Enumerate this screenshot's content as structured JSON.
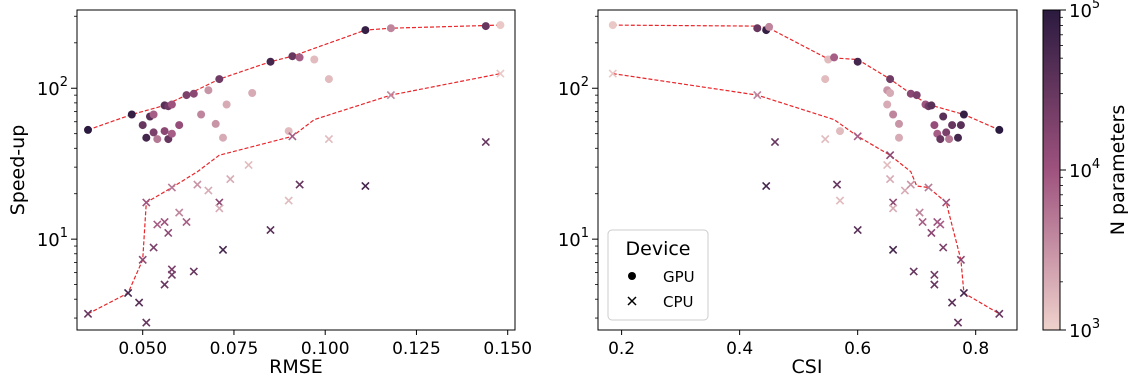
{
  "chart_data": [
    {
      "type": "scatter",
      "xlabel": "RMSE",
      "ylabel": "Speed-up",
      "xlim": [
        0.032,
        0.152
      ],
      "ylim": [
        2.5,
        330
      ],
      "yscale": "log",
      "xticks": [
        "0.050",
        "0.075",
        "0.100",
        "0.125",
        "0.150"
      ],
      "xtick_values": [
        0.05,
        0.075,
        0.1,
        0.125,
        0.15
      ],
      "yticks": [
        {
          "base": "10",
          "exp": "1",
          "value": 10
        },
        {
          "base": "10",
          "exp": "2",
          "value": 100
        }
      ],
      "gpu_points": [
        {
          "x": 0.035,
          "y": 53,
          "n": 100000
        },
        {
          "x": 0.047,
          "y": 67,
          "n": 80000
        },
        {
          "x": 0.05,
          "y": 57,
          "n": 30000
        },
        {
          "x": 0.051,
          "y": 47,
          "n": 60000
        },
        {
          "x": 0.052,
          "y": 65,
          "n": 40000
        },
        {
          "x": 0.053,
          "y": 67,
          "n": 8000
        },
        {
          "x": 0.053,
          "y": 51,
          "n": 20000
        },
        {
          "x": 0.054,
          "y": 46,
          "n": 5000
        },
        {
          "x": 0.056,
          "y": 77,
          "n": 40000
        },
        {
          "x": 0.056,
          "y": 52,
          "n": 15000
        },
        {
          "x": 0.057,
          "y": 76,
          "n": 25000
        },
        {
          "x": 0.057,
          "y": 46,
          "n": 30000
        },
        {
          "x": 0.058,
          "y": 78,
          "n": 10000
        },
        {
          "x": 0.058,
          "y": 50,
          "n": 8000
        },
        {
          "x": 0.06,
          "y": 57,
          "n": 12000
        },
        {
          "x": 0.062,
          "y": 90,
          "n": 20000
        },
        {
          "x": 0.064,
          "y": 92,
          "n": 15000
        },
        {
          "x": 0.066,
          "y": 67,
          "n": 4000
        },
        {
          "x": 0.068,
          "y": 97,
          "n": 3000
        },
        {
          "x": 0.07,
          "y": 58,
          "n": 3000
        },
        {
          "x": 0.071,
          "y": 115,
          "n": 25000
        },
        {
          "x": 0.072,
          "y": 47,
          "n": 2000
        },
        {
          "x": 0.073,
          "y": 78,
          "n": 2000
        },
        {
          "x": 0.08,
          "y": 93,
          "n": 2000
        },
        {
          "x": 0.085,
          "y": 150,
          "n": 60000
        },
        {
          "x": 0.09,
          "y": 52,
          "n": 1500
        },
        {
          "x": 0.091,
          "y": 163,
          "n": 30000
        },
        {
          "x": 0.093,
          "y": 160,
          "n": 8000
        },
        {
          "x": 0.097,
          "y": 155,
          "n": 1500
        },
        {
          "x": 0.101,
          "y": 115,
          "n": 1500
        },
        {
          "x": 0.111,
          "y": 243,
          "n": 80000
        },
        {
          "x": 0.118,
          "y": 250,
          "n": 4000
        },
        {
          "x": 0.144,
          "y": 258,
          "n": 30000
        },
        {
          "x": 0.148,
          "y": 262,
          "n": 1200
        }
      ],
      "cpu_points": [
        {
          "x": 0.035,
          "y": 3.2,
          "n": 30000
        },
        {
          "x": 0.046,
          "y": 4.4,
          "n": 60000
        },
        {
          "x": 0.049,
          "y": 3.8,
          "n": 40000
        },
        {
          "x": 0.05,
          "y": 7.3,
          "n": 15000
        },
        {
          "x": 0.051,
          "y": 2.8,
          "n": 30000
        },
        {
          "x": 0.051,
          "y": 17.5,
          "n": 10000
        },
        {
          "x": 0.053,
          "y": 8.8,
          "n": 20000
        },
        {
          "x": 0.054,
          "y": 12.5,
          "n": 8000
        },
        {
          "x": 0.056,
          "y": 5.0,
          "n": 30000
        },
        {
          "x": 0.056,
          "y": 13.0,
          "n": 10000
        },
        {
          "x": 0.057,
          "y": 11.0,
          "n": 15000
        },
        {
          "x": 0.058,
          "y": 5.8,
          "n": 25000
        },
        {
          "x": 0.058,
          "y": 6.3,
          "n": 20000
        },
        {
          "x": 0.058,
          "y": 22.0,
          "n": 5000
        },
        {
          "x": 0.06,
          "y": 15.0,
          "n": 4000
        },
        {
          "x": 0.062,
          "y": 13.0,
          "n": 8000
        },
        {
          "x": 0.064,
          "y": 6.1,
          "n": 30000
        },
        {
          "x": 0.065,
          "y": 23.0,
          "n": 3000
        },
        {
          "x": 0.068,
          "y": 21.0,
          "n": 2000
        },
        {
          "x": 0.071,
          "y": 17.5,
          "n": 15000
        },
        {
          "x": 0.071,
          "y": 16.0,
          "n": 2000
        },
        {
          "x": 0.072,
          "y": 8.5,
          "n": 60000
        },
        {
          "x": 0.074,
          "y": 25.0,
          "n": 2000
        },
        {
          "x": 0.079,
          "y": 31.0,
          "n": 1500
        },
        {
          "x": 0.085,
          "y": 11.5,
          "n": 40000
        },
        {
          "x": 0.09,
          "y": 18.0,
          "n": 1500
        },
        {
          "x": 0.091,
          "y": 48.0,
          "n": 8000
        },
        {
          "x": 0.093,
          "y": 23.0,
          "n": 30000
        },
        {
          "x": 0.101,
          "y": 46.0,
          "n": 1500
        },
        {
          "x": 0.111,
          "y": 22.5,
          "n": 60000
        },
        {
          "x": 0.118,
          "y": 90.0,
          "n": 4000
        },
        {
          "x": 0.144,
          "y": 44.0,
          "n": 30000
        },
        {
          "x": 0.148,
          "y": 125.0,
          "n": 1200
        }
      ],
      "gpu_front": [
        [
          0.035,
          53
        ],
        [
          0.047,
          67
        ],
        [
          0.056,
          77
        ],
        [
          0.062,
          90
        ],
        [
          0.071,
          115
        ],
        [
          0.085,
          150
        ],
        [
          0.091,
          163
        ],
        [
          0.111,
          243
        ],
        [
          0.118,
          250
        ],
        [
          0.148,
          262
        ]
      ],
      "cpu_front": [
        [
          0.035,
          3.2
        ],
        [
          0.046,
          4.4
        ],
        [
          0.05,
          7.3
        ],
        [
          0.051,
          17.5
        ],
        [
          0.058,
          22
        ],
        [
          0.065,
          28
        ],
        [
          0.071,
          36
        ],
        [
          0.091,
          48
        ],
        [
          0.097,
          62
        ],
        [
          0.118,
          90
        ],
        [
          0.148,
          125
        ]
      ]
    },
    {
      "type": "scatter",
      "xlabel": "CSI",
      "ylabel": "",
      "xlim": [
        0.16,
        0.87
      ],
      "ylim": [
        2.5,
        330
      ],
      "yscale": "log",
      "xticks": [
        "0.2",
        "0.4",
        "0.6",
        "0.8"
      ],
      "xtick_values": [
        0.2,
        0.4,
        0.6,
        0.8
      ],
      "yticks": [
        {
          "base": "10",
          "exp": "1",
          "value": 10
        },
        {
          "base": "10",
          "exp": "2",
          "value": 100
        }
      ],
      "gpu_points": [
        {
          "x": 0.185,
          "y": 262,
          "n": 1200
        },
        {
          "x": 0.43,
          "y": 250,
          "n": 30000
        },
        {
          "x": 0.445,
          "y": 243,
          "n": 80000
        },
        {
          "x": 0.45,
          "y": 255,
          "n": 4000
        },
        {
          "x": 0.545,
          "y": 115,
          "n": 1500
        },
        {
          "x": 0.55,
          "y": 155,
          "n": 1500
        },
        {
          "x": 0.56,
          "y": 160,
          "n": 8000
        },
        {
          "x": 0.57,
          "y": 52,
          "n": 1500
        },
        {
          "x": 0.6,
          "y": 150,
          "n": 60000
        },
        {
          "x": 0.65,
          "y": 97,
          "n": 3000
        },
        {
          "x": 0.65,
          "y": 78,
          "n": 2000
        },
        {
          "x": 0.655,
          "y": 93,
          "n": 2000
        },
        {
          "x": 0.655,
          "y": 115,
          "n": 25000
        },
        {
          "x": 0.66,
          "y": 67,
          "n": 4000
        },
        {
          "x": 0.67,
          "y": 58,
          "n": 3000
        },
        {
          "x": 0.67,
          "y": 47,
          "n": 2000
        },
        {
          "x": 0.69,
          "y": 92,
          "n": 15000
        },
        {
          "x": 0.7,
          "y": 90,
          "n": 20000
        },
        {
          "x": 0.715,
          "y": 78,
          "n": 10000
        },
        {
          "x": 0.72,
          "y": 76,
          "n": 25000
        },
        {
          "x": 0.725,
          "y": 77,
          "n": 40000
        },
        {
          "x": 0.73,
          "y": 57,
          "n": 12000
        },
        {
          "x": 0.735,
          "y": 50,
          "n": 8000
        },
        {
          "x": 0.74,
          "y": 46,
          "n": 30000
        },
        {
          "x": 0.745,
          "y": 65,
          "n": 40000
        },
        {
          "x": 0.75,
          "y": 51,
          "n": 20000
        },
        {
          "x": 0.755,
          "y": 46,
          "n": 5000
        },
        {
          "x": 0.76,
          "y": 57,
          "n": 30000
        },
        {
          "x": 0.77,
          "y": 47,
          "n": 60000
        },
        {
          "x": 0.775,
          "y": 57,
          "n": 40000
        },
        {
          "x": 0.78,
          "y": 67,
          "n": 80000
        },
        {
          "x": 0.84,
          "y": 53,
          "n": 100000
        }
      ],
      "cpu_points": [
        {
          "x": 0.185,
          "y": 125,
          "n": 1200
        },
        {
          "x": 0.43,
          "y": 90,
          "n": 4000
        },
        {
          "x": 0.445,
          "y": 22.5,
          "n": 60000
        },
        {
          "x": 0.46,
          "y": 44,
          "n": 30000
        },
        {
          "x": 0.545,
          "y": 46,
          "n": 1500
        },
        {
          "x": 0.565,
          "y": 23,
          "n": 30000
        },
        {
          "x": 0.57,
          "y": 18,
          "n": 1500
        },
        {
          "x": 0.6,
          "y": 11.5,
          "n": 40000
        },
        {
          "x": 0.6,
          "y": 48,
          "n": 8000
        },
        {
          "x": 0.65,
          "y": 31,
          "n": 1500
        },
        {
          "x": 0.655,
          "y": 25,
          "n": 2000
        },
        {
          "x": 0.655,
          "y": 36,
          "n": 15000
        },
        {
          "x": 0.66,
          "y": 17.5,
          "n": 15000
        },
        {
          "x": 0.66,
          "y": 16,
          "n": 2000
        },
        {
          "x": 0.66,
          "y": 8.5,
          "n": 60000
        },
        {
          "x": 0.68,
          "y": 21,
          "n": 2000
        },
        {
          "x": 0.69,
          "y": 23,
          "n": 3000
        },
        {
          "x": 0.695,
          "y": 6.1,
          "n": 30000
        },
        {
          "x": 0.705,
          "y": 15,
          "n": 4000
        },
        {
          "x": 0.71,
          "y": 13,
          "n": 8000
        },
        {
          "x": 0.72,
          "y": 22,
          "n": 5000
        },
        {
          "x": 0.725,
          "y": 11,
          "n": 15000
        },
        {
          "x": 0.73,
          "y": 5.8,
          "n": 25000
        },
        {
          "x": 0.73,
          "y": 5.0,
          "n": 30000
        },
        {
          "x": 0.735,
          "y": 13,
          "n": 10000
        },
        {
          "x": 0.74,
          "y": 12.5,
          "n": 8000
        },
        {
          "x": 0.745,
          "y": 8.8,
          "n": 20000
        },
        {
          "x": 0.75,
          "y": 17.5,
          "n": 10000
        },
        {
          "x": 0.76,
          "y": 3.8,
          "n": 40000
        },
        {
          "x": 0.77,
          "y": 2.8,
          "n": 30000
        },
        {
          "x": 0.775,
          "y": 7.3,
          "n": 15000
        },
        {
          "x": 0.78,
          "y": 4.4,
          "n": 60000
        },
        {
          "x": 0.84,
          "y": 3.2,
          "n": 30000
        }
      ],
      "gpu_front": [
        [
          0.185,
          262
        ],
        [
          0.43,
          258
        ],
        [
          0.45,
          250
        ],
        [
          0.545,
          160
        ],
        [
          0.6,
          155
        ],
        [
          0.655,
          115
        ],
        [
          0.69,
          92
        ],
        [
          0.72,
          78
        ],
        [
          0.78,
          67
        ],
        [
          0.84,
          53
        ]
      ],
      "cpu_front": [
        [
          0.185,
          125
        ],
        [
          0.43,
          90
        ],
        [
          0.56,
          62
        ],
        [
          0.6,
          48
        ],
        [
          0.655,
          36
        ],
        [
          0.69,
          28
        ],
        [
          0.7,
          22.5
        ],
        [
          0.72,
          22
        ],
        [
          0.75,
          17.5
        ],
        [
          0.775,
          7.3
        ],
        [
          0.78,
          4.4
        ],
        [
          0.84,
          3.2
        ]
      ]
    }
  ],
  "colorbar": {
    "label": "N parameters",
    "scale": "log",
    "range": [
      1000,
      100000
    ],
    "ticks": [
      {
        "base": "10",
        "exp": "3",
        "value": 1000
      },
      {
        "base": "10",
        "exp": "4",
        "value": 10000
      },
      {
        "base": "10",
        "exp": "5",
        "value": 100000
      }
    ],
    "color_low": "#efd2cc",
    "color_mid": "#9e527e",
    "color_high": "#2b1a3f"
  },
  "legend": {
    "title": "Device",
    "entries": [
      {
        "label": "GPU",
        "marker": "circle"
      },
      {
        "label": "CPU",
        "marker": "x"
      }
    ]
  },
  "front_color": "#e8262b"
}
